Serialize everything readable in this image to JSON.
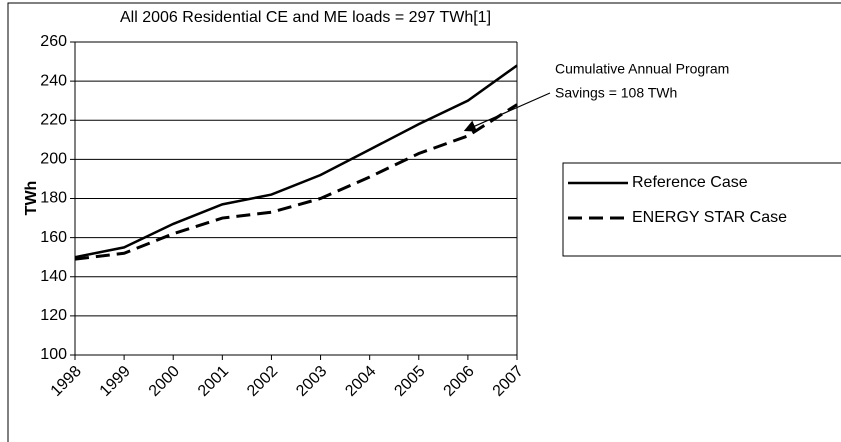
{
  "chart_data": {
    "type": "line",
    "annotations": [
      {
        "text": "All 2006 Residential CE and ME loads = 297 TWh[1]"
      },
      {
        "lines": [
          "Cumulative Annual Program",
          "Savings = 108 TWh"
        ]
      }
    ],
    "y_label": "TWh",
    "categories": [
      "1998",
      "1999",
      "2000",
      "2001",
      "2002",
      "2003",
      "2004",
      "2005",
      "2006",
      "2007"
    ],
    "series": [
      {
        "name": "Reference Case",
        "color": "#000000",
        "dashed": false,
        "values": [
          150,
          155,
          167,
          177,
          182,
          192,
          205,
          218,
          230,
          248
        ]
      },
      {
        "name": "ENERGY STAR Case",
        "color": "#000000",
        "dashed": true,
        "values": [
          149,
          152,
          162,
          170,
          173,
          180,
          191,
          203,
          212,
          228
        ]
      }
    ],
    "ylim": [
      100,
      260
    ],
    "yticks": [
      100,
      120,
      140,
      160,
      180,
      200,
      220,
      240,
      260
    ],
    "grid": true
  }
}
